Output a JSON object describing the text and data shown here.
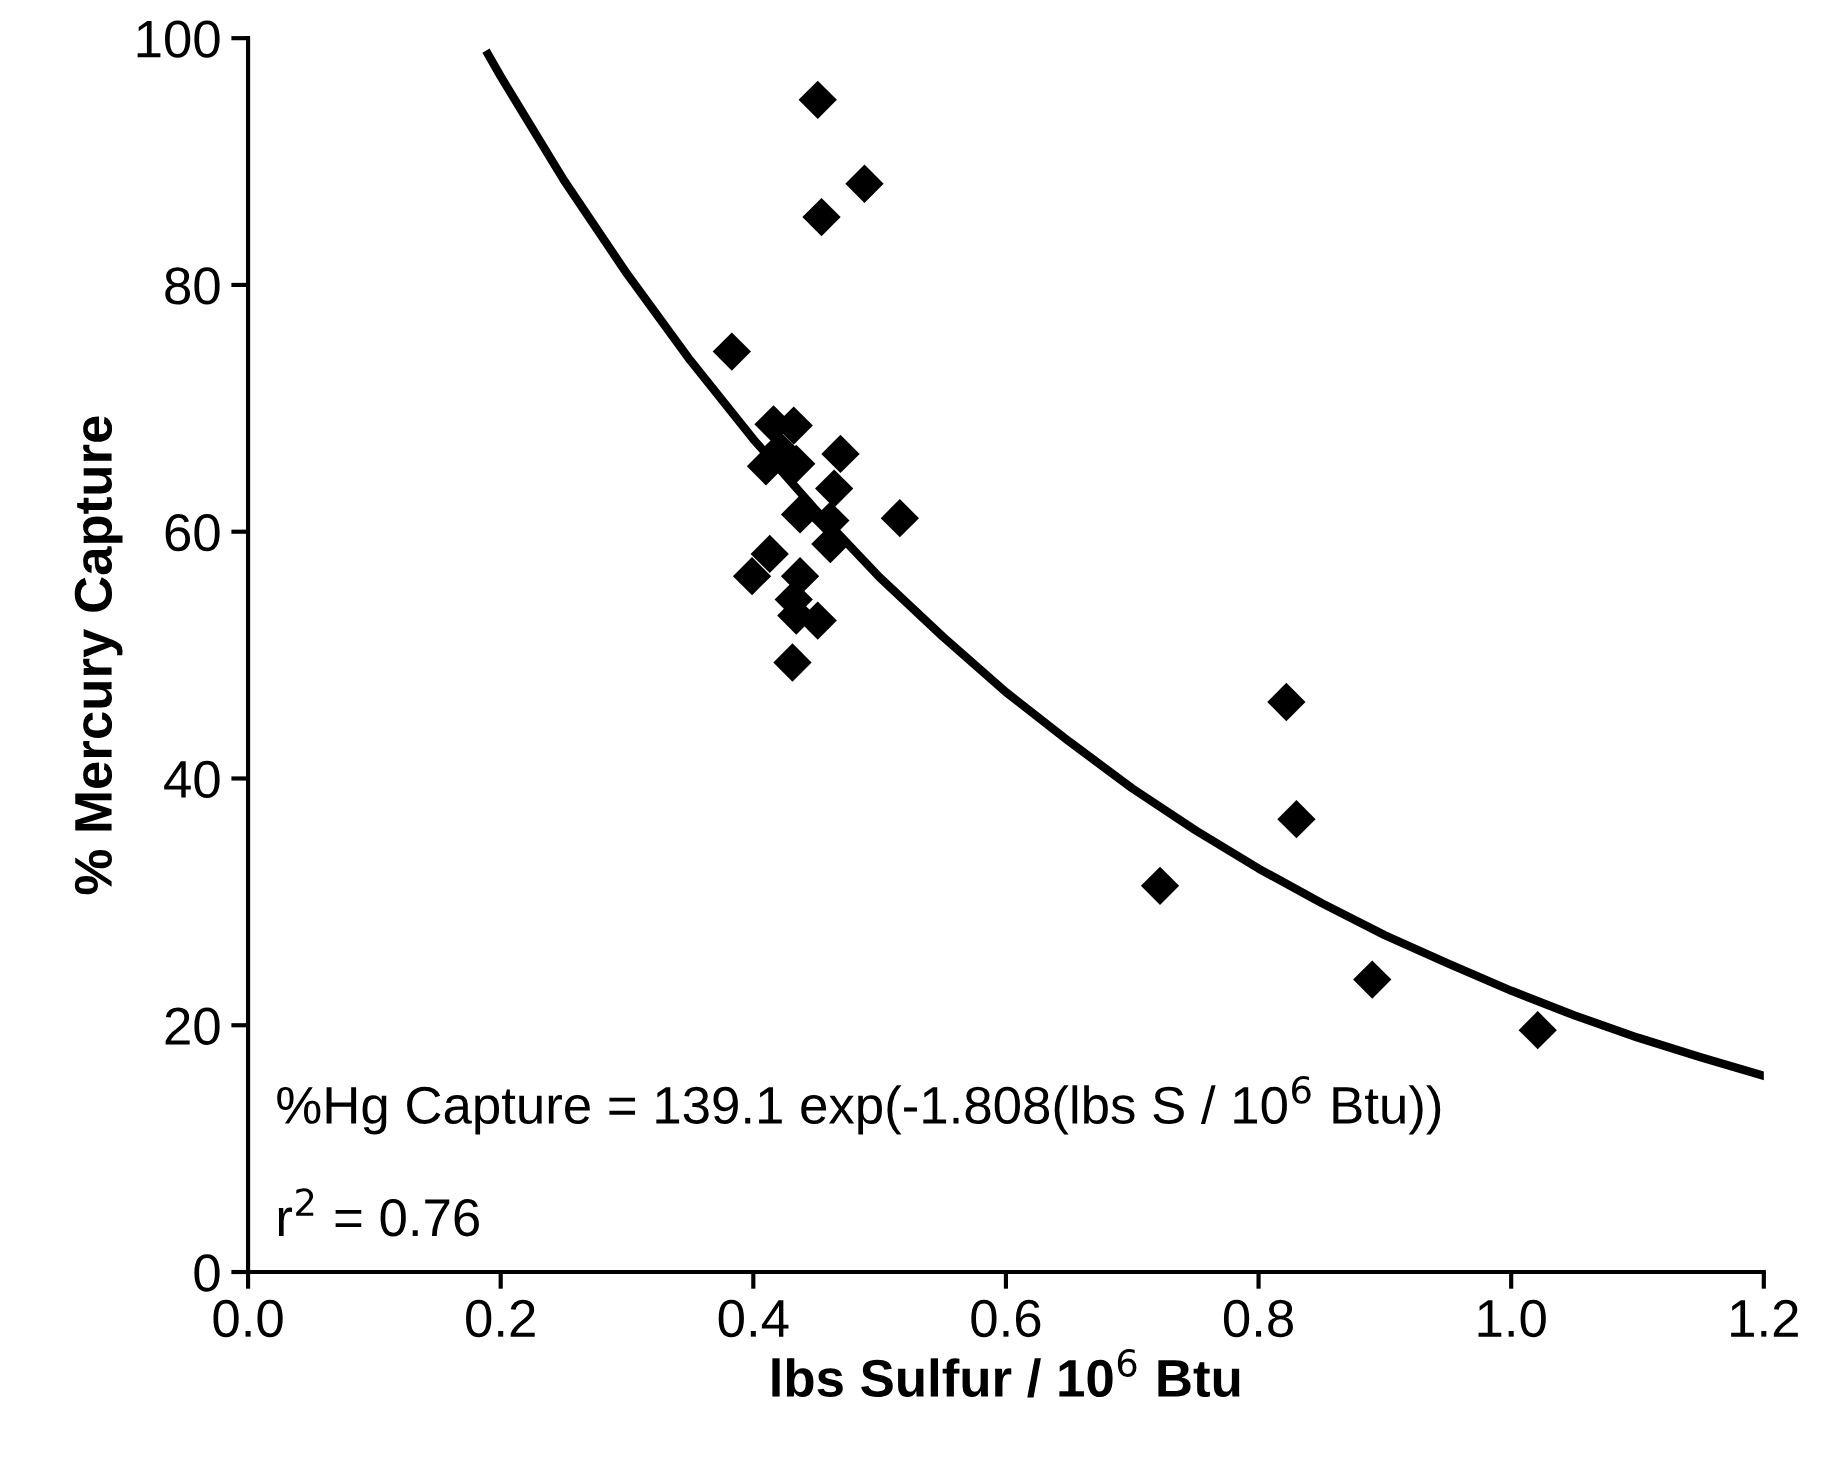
{
  "chart_data": {
    "type": "scatter",
    "xlabel": "lbs Sulfur / 10$^{6}$ Btu",
    "ylabel": "% Mercury Capture",
    "xlim": [
      0.0,
      1.2
    ],
    "xticks": [
      {
        "value": 0,
        "label": "0.0"
      },
      0.2,
      0.4,
      0.6,
      0.8,
      {
        "value": 1,
        "label": "1.0"
      },
      1.2
    ],
    "ylim": [
      0,
      100
    ],
    "yticks": [
      0,
      20,
      40,
      60,
      80,
      100
    ],
    "grid": false,
    "legend": false,
    "marker": "diamond",
    "annotations": [
      "%Hg Capture = 139.1 exp(-1.808(lbs S / 10$^{6}$ Btu))",
      "r$^{2}$ = 0.76"
    ],
    "series": [
      {
        "color": "#000000",
        "x": [
          0.383,
          0.416,
          0.432,
          0.41,
          0.421,
          0.434,
          0.469,
          0.464,
          0.437,
          0.461,
          0.461,
          0.516,
          0.413,
          0.399,
          0.437,
          0.432,
          0.434,
          0.451,
          0.431,
          0.451,
          0.454,
          0.488,
          0.722,
          0.822,
          0.83,
          0.89,
          1.021
        ],
        "values": [
          74.6,
          68.7,
          68.6,
          65.3,
          66.6,
          65.5,
          66.3,
          63.5,
          61.4,
          60.9,
          59.0,
          61.1,
          58.2,
          56.4,
          56.4,
          54.5,
          53.2,
          52.8,
          49.4,
          95.0,
          85.5,
          88.2,
          31.3,
          46.2,
          36.7,
          23.7,
          19.6
        ]
      },
      {
        "type": "line",
        "color": "#000000",
        "marker": "none",
        "line_style": "solid",
        "x": [
          0.19,
          0.2,
          0.25,
          0.3,
          0.35,
          0.4,
          0.45,
          0.5,
          0.55,
          0.6,
          0.65,
          0.7,
          0.75,
          0.8,
          0.85,
          0.9,
          0.95,
          1.0,
          1.05,
          1.1,
          1.15,
          1.2
        ],
        "values": [
          98.7,
          96.9,
          88.5,
          80.9,
          73.9,
          67.5,
          61.7,
          56.3,
          51.5,
          47.0,
          43.0,
          39.2,
          35.8,
          32.7,
          29.9,
          27.3,
          25.0,
          22.8,
          20.8,
          19.0,
          17.4,
          15.9
        ]
      }
    ]
  }
}
